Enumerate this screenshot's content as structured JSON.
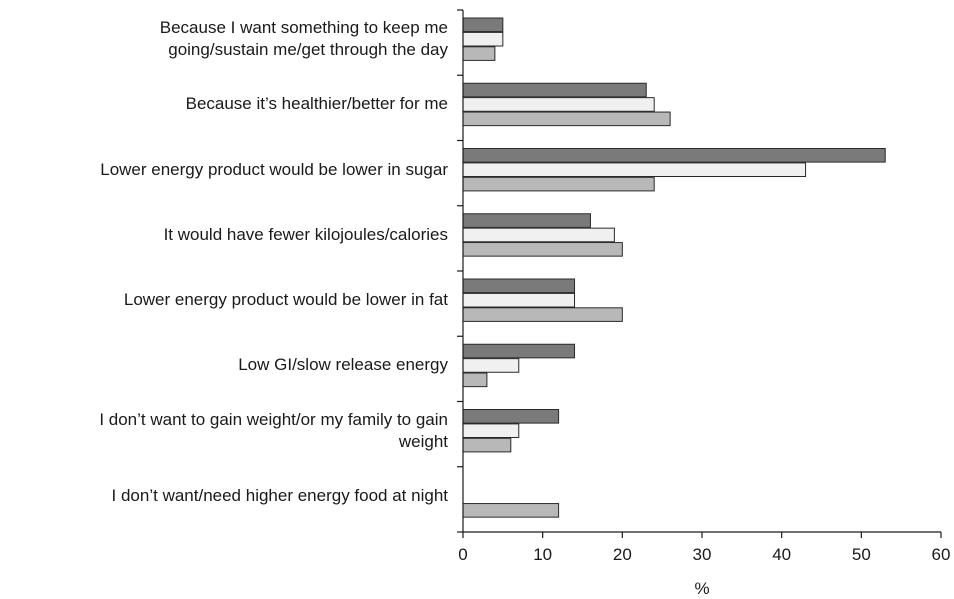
{
  "chart_data": {
    "type": "bar",
    "orientation": "horizontal",
    "categories": [
      "Because I want something to keep me going/sustain me/get through the day",
      "Because it’s healthier/better for me",
      "Lower energy product would be lower in sugar",
      "It would have fewer kilojoules/calories",
      "Lower energy product would be lower in fat",
      "Low GI/slow release energy",
      "I don’t want to gain weight/or my family to gain weight",
      "I don’t want/need higher energy food at night"
    ],
    "category_lines": [
      [
        "Because I want something to keep me",
        "going/sustain me/get through the day"
      ],
      [
        "Because it’s healthier/better for me"
      ],
      [
        "Lower energy product would be lower in sugar"
      ],
      [
        "It would have fewer kilojoules/calories"
      ],
      [
        "Lower energy product would be lower in fat"
      ],
      [
        "Low GI/slow release energy"
      ],
      [
        "I don’t want to gain weight/or my family to gain",
        "weight"
      ],
      [
        "I don’t want/need higher energy food at night"
      ]
    ],
    "series": [
      {
        "values": [
          5,
          23,
          53,
          16,
          14,
          14,
          12,
          0
        ],
        "color": "#7a7a7a"
      },
      {
        "values": [
          5,
          24,
          43,
          19,
          14,
          7,
          7,
          0
        ],
        "color": "#f0f0f0"
      },
      {
        "values": [
          4,
          26,
          24,
          20,
          20,
          3,
          6,
          12
        ],
        "color": "#b8b8b8"
      }
    ],
    "xlabel": "%",
    "xlim": [
      0,
      60
    ],
    "xticks": [
      0,
      10,
      20,
      30,
      40,
      50,
      60
    ],
    "grid": false,
    "legend": "none"
  }
}
